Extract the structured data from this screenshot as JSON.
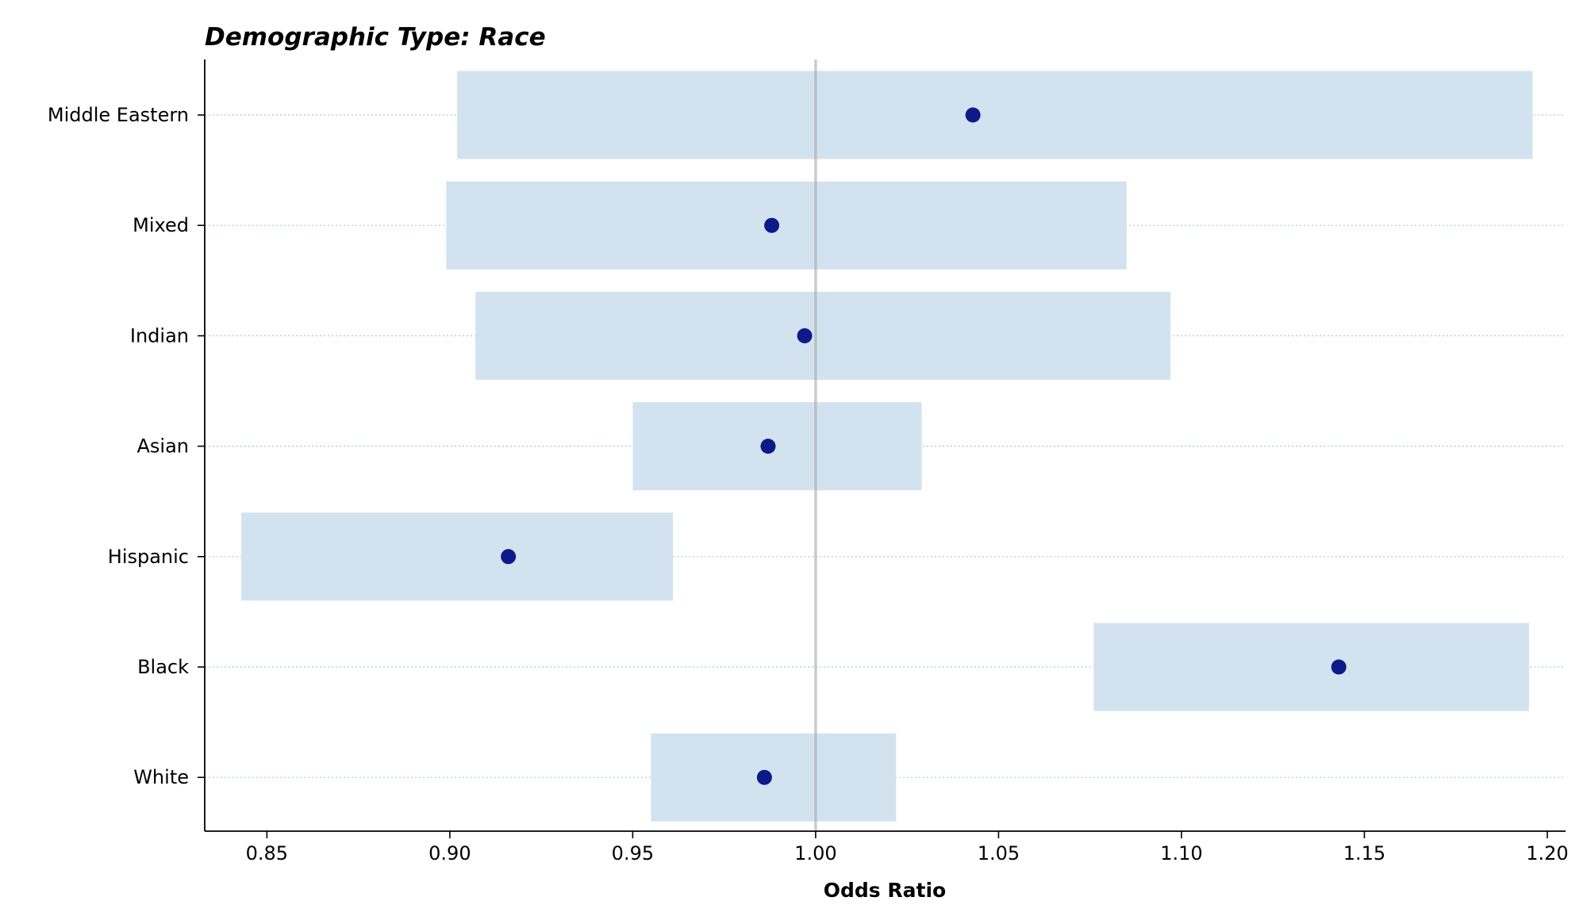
{
  "chart_data": {
    "type": "scatter",
    "title": "Demographic Type: Race",
    "xlabel": "Odds Ratio",
    "ylabel": "",
    "xlim": [
      0.833,
      1.205
    ],
    "x_ticks": [
      0.85,
      0.9,
      0.95,
      1.0,
      1.05,
      1.1,
      1.15,
      1.2
    ],
    "x_tick_labels": [
      "0.85",
      "0.90",
      "0.95",
      "1.00",
      "1.05",
      "1.10",
      "1.15",
      "1.20"
    ],
    "reference_line": 1.0,
    "grid": "horizontal dotted",
    "categories": [
      "Middle Eastern",
      "Mixed",
      "Indian",
      "Asian",
      "Hispanic",
      "Black",
      "White"
    ],
    "series": [
      {
        "odds_ratio": [
          1.043,
          0.988,
          0.997,
          0.987,
          0.916,
          1.143,
          0.986
        ],
        "ci_lower": [
          0.902,
          0.899,
          0.907,
          0.95,
          0.843,
          1.076,
          0.955
        ],
        "ci_upper": [
          1.196,
          1.085,
          1.097,
          1.029,
          0.961,
          1.195,
          1.022
        ]
      }
    ],
    "colors": {
      "point": "#0d1a8a",
      "interval": "#d2e3ef",
      "reference_line": "#a9a9a9",
      "grid": "#a8c8de"
    }
  }
}
